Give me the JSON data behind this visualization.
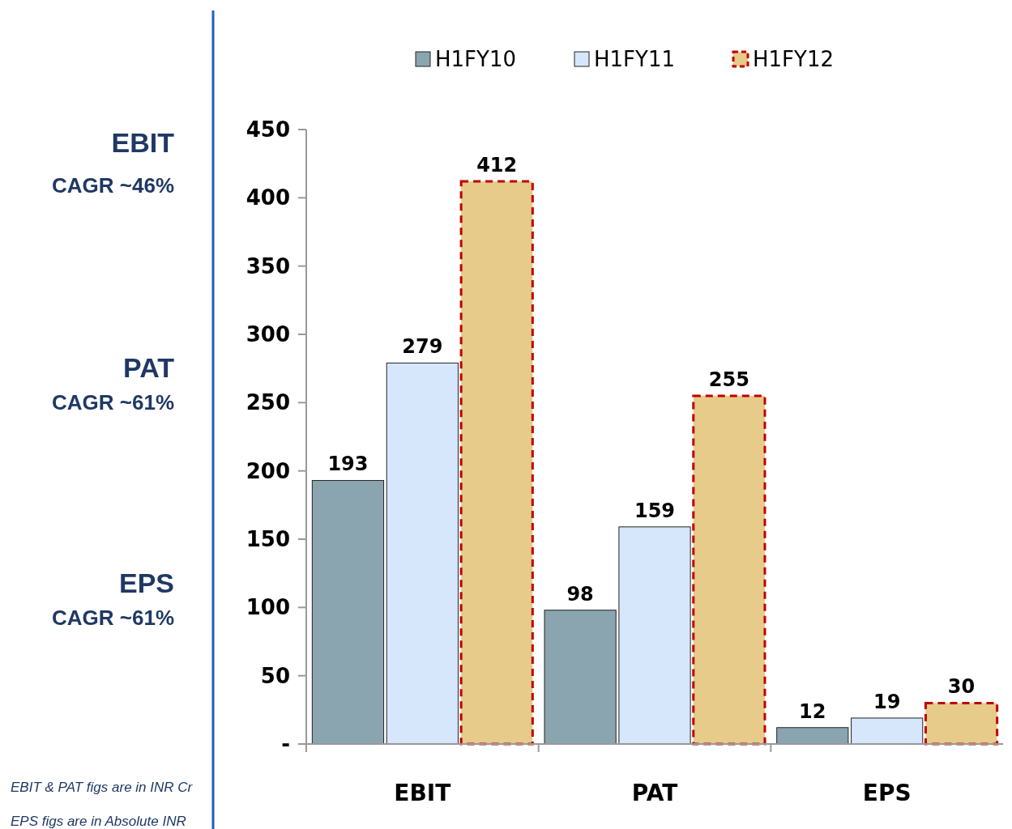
{
  "chart_data": {
    "type": "bar",
    "categories": [
      "EBIT",
      "PAT",
      "EPS"
    ],
    "series": [
      {
        "name": "H1FY10",
        "color": "#8ba5b0",
        "values": [
          193,
          98,
          12
        ]
      },
      {
        "name": "H1FY11",
        "color": "#d6e6fb",
        "values": [
          279,
          159,
          19
        ]
      },
      {
        "name": "H1FY12",
        "color": "#e6cb8b",
        "values": [
          412,
          255,
          30
        ],
        "line_style": "dashed"
      }
    ],
    "ylim": [
      0,
      450
    ],
    "yticks": [
      {
        "value": 0,
        "label": "-"
      },
      50,
      100,
      150,
      200,
      250,
      300,
      350,
      400,
      450
    ],
    "data_labels": true,
    "legend": "top",
    "grid": false,
    "annotations": [
      "EBIT",
      "CAGR ~46%",
      "PAT",
      "CAGR ~61%",
      "EPS",
      "CAGR ~61%",
      "EBIT & PAT figs are in INR Cr",
      "EPS figs are in Absolute INR"
    ]
  }
}
